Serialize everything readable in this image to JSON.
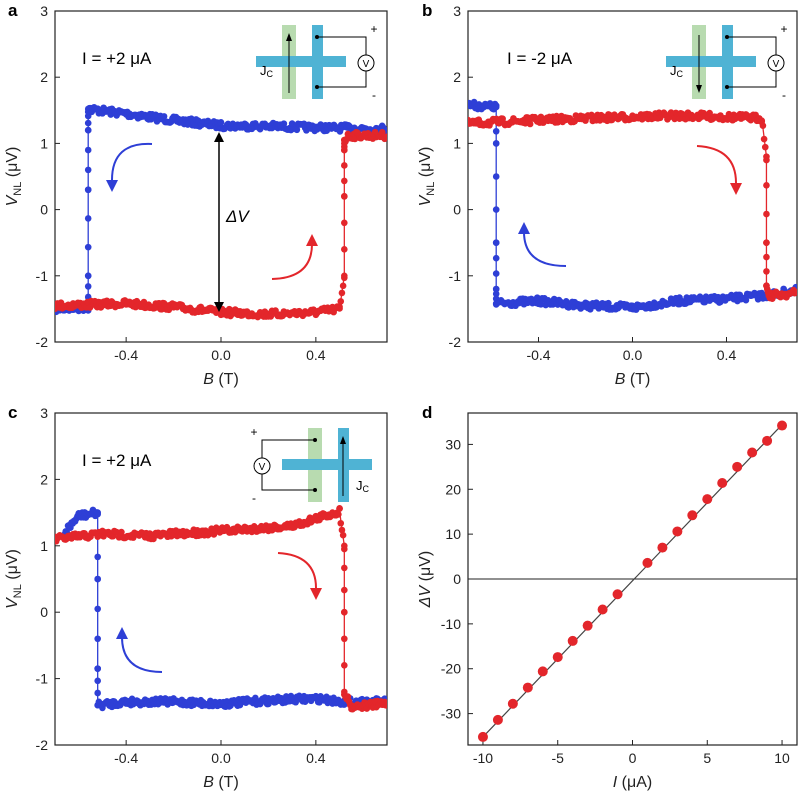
{
  "colors": {
    "blue": "#2e3fd6",
    "red": "#e3262b",
    "green": "#b8dbb0",
    "cyan": "#4fb3d4",
    "axis": "#222222"
  },
  "chart_data": [
    {
      "type": "scatter",
      "panel_label": "a",
      "annotation": "I = +2 μA",
      "inset_label": "J",
      "inset_sub": "C",
      "delta_label": "ΔV",
      "xlabel": "B",
      "xunit": " (T)",
      "ylabel": "V",
      "ysub": "NL",
      "yunit": " (μV)",
      "xlim": [
        -0.7,
        0.7
      ],
      "ylim": [
        -2,
        3
      ],
      "xticks": [
        -0.4,
        0.0,
        0.4
      ],
      "xtick_labels": [
        "-0.4",
        "0.0",
        "0.4"
      ],
      "yticks": [
        -2,
        -1,
        0,
        1,
        2,
        3
      ],
      "ytick_labels": [
        "-2",
        "-1",
        "0",
        "1",
        "2",
        "3"
      ],
      "series": [
        {
          "color": "blue",
          "x": [
            -0.7,
            -0.56,
            -0.56,
            -0.56,
            -0.56,
            -0.56,
            -0.4,
            -0.2,
            0.0,
            0.2,
            0.4,
            0.7
          ],
          "y": [
            -1.5,
            -1.48,
            -1.0,
            0.3,
            1.2,
            1.52,
            1.45,
            1.35,
            1.27,
            1.26,
            1.24,
            1.22
          ]
        },
        {
          "color": "red",
          "x": [
            -0.7,
            -0.4,
            -0.2,
            0.0,
            0.2,
            0.4,
            0.5,
            0.52,
            0.52,
            0.52,
            0.52,
            0.54,
            0.7
          ],
          "y": [
            -1.45,
            -1.42,
            -1.47,
            -1.55,
            -1.58,
            -1.55,
            -1.5,
            -1.0,
            0.2,
            0.9,
            1.05,
            1.12,
            1.12
          ]
        }
      ]
    },
    {
      "type": "scatter",
      "panel_label": "b",
      "annotation": "I = -2 μA",
      "inset_label": "J",
      "inset_sub": "C",
      "xlabel": "B",
      "xunit": " (T)",
      "ylabel": "V",
      "ysub": "NL",
      "yunit": " (μV)",
      "xlim": [
        -0.7,
        0.7
      ],
      "ylim": [
        -2,
        3
      ],
      "xticks": [
        -0.4,
        0.0,
        0.4
      ],
      "xtick_labels": [
        "-0.4",
        "0.0",
        "0.4"
      ],
      "yticks": [
        -2,
        -1,
        0,
        1,
        2,
        3
      ],
      "ytick_labels": [
        "-2",
        "-1",
        "0",
        "1",
        "2",
        "3"
      ],
      "series": [
        {
          "color": "blue",
          "x": [
            -0.7,
            -0.58,
            -0.58,
            -0.58,
            -0.58,
            -0.58,
            -0.4,
            -0.2,
            0.0,
            0.2,
            0.4,
            0.55,
            0.7
          ],
          "y": [
            1.58,
            1.55,
            1.0,
            -0.5,
            -1.2,
            -1.42,
            -1.38,
            -1.45,
            -1.48,
            -1.38,
            -1.35,
            -1.3,
            -1.22
          ]
        },
        {
          "color": "red",
          "x": [
            -0.7,
            -0.4,
            -0.2,
            0.0,
            0.2,
            0.4,
            0.55,
            0.57,
            0.57,
            0.57,
            0.58,
            0.7
          ],
          "y": [
            1.3,
            1.35,
            1.38,
            1.4,
            1.42,
            1.4,
            1.38,
            0.8,
            -0.5,
            -1.15,
            -1.3,
            -1.26
          ]
        }
      ]
    },
    {
      "type": "scatter",
      "panel_label": "c",
      "annotation": "I = +2 μA",
      "inset_label": "J",
      "inset_sub": "C",
      "xlabel": "B",
      "xunit": " (T)",
      "ylabel": "V",
      "ysub": "NL",
      "yunit": " (μV)",
      "xlim": [
        -0.7,
        0.7
      ],
      "ylim": [
        -2,
        3
      ],
      "xticks": [
        -0.4,
        0.0,
        0.4
      ],
      "xtick_labels": [
        "-0.4",
        "0.0",
        "0.4"
      ],
      "yticks": [
        -2,
        -1,
        0,
        1,
        2,
        3
      ],
      "ytick_labels": [
        "-2",
        "-1",
        "0",
        "1",
        "2",
        "3"
      ],
      "series": [
        {
          "color": "blue",
          "x": [
            -0.66,
            -0.6,
            -0.52,
            -0.52,
            -0.52,
            -0.52,
            -0.4,
            -0.2,
            0.0,
            0.2,
            0.4,
            0.52,
            0.7
          ],
          "y": [
            1.2,
            1.45,
            1.5,
            0.5,
            -0.85,
            -1.4,
            -1.35,
            -1.35,
            -1.38,
            -1.33,
            -1.3,
            -1.35,
            -1.35
          ]
        },
        {
          "color": "red",
          "x": [
            -0.7,
            -0.5,
            -0.3,
            -0.1,
            0.1,
            0.3,
            0.5,
            0.52,
            0.52,
            0.52,
            0.55,
            0.7
          ],
          "y": [
            1.1,
            1.18,
            1.15,
            1.2,
            1.25,
            1.3,
            1.52,
            1.0,
            0.0,
            -1.2,
            -1.42,
            -1.38
          ]
        }
      ]
    },
    {
      "type": "scatter",
      "panel_label": "d",
      "xlabel": "I",
      "xunit": " (μA)",
      "ylabel": "ΔV",
      "yunit": " (μV)",
      "xlim": [
        -11,
        11
      ],
      "ylim": [
        -37,
        37
      ],
      "xticks": [
        -10,
        -5,
        0,
        5,
        10
      ],
      "xtick_labels": [
        "-10",
        "-5",
        "0",
        "5",
        "10"
      ],
      "yticks": [
        -30,
        -20,
        -10,
        0,
        10,
        20,
        30
      ],
      "ytick_labels": [
        "-30",
        "-20",
        "-10",
        "0",
        "10",
        "20",
        "30"
      ],
      "series": [
        {
          "color": "red",
          "x": [
            -10,
            -9,
            -8,
            -7,
            -6,
            -5,
            -4,
            -3,
            -2,
            -1,
            1,
            2,
            3,
            4,
            5,
            6,
            7,
            8,
            9,
            10
          ],
          "y": [
            -35.2,
            -31.4,
            -27.8,
            -24.2,
            -20.6,
            -17.4,
            -13.8,
            -10.4,
            -6.8,
            -3.4,
            3.6,
            7.0,
            10.6,
            14.2,
            17.8,
            21.4,
            25.0,
            28.2,
            30.8,
            34.2
          ]
        }
      ],
      "fit_line": {
        "x": [
          -10,
          10
        ],
        "y": [
          -35.2,
          34.4
        ]
      }
    }
  ]
}
